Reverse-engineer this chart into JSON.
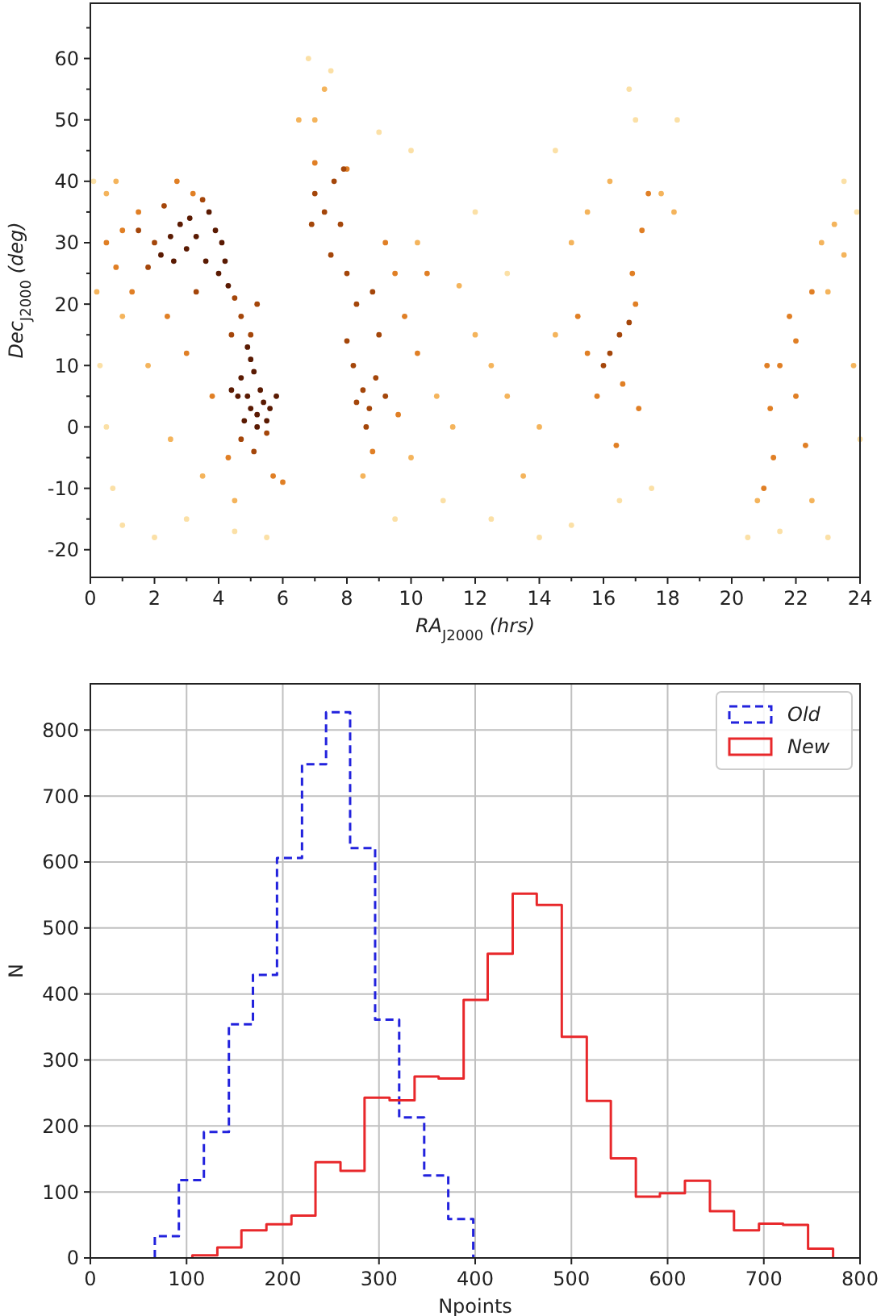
{
  "chart_data": [
    {
      "type": "scatter",
      "xlabel": "RA$_{J2000}$ (hrs)",
      "ylabel": "Dec$_{J2000}$ (deg)",
      "xlim": [
        0,
        24
      ],
      "ylim": [
        -24.5,
        69
      ],
      "xticks": [
        0,
        2,
        4,
        6,
        8,
        10,
        12,
        14,
        16,
        18,
        20,
        22,
        24,
        {
          "value": 1,
          "label": null
        },
        {
          "value": 3,
          "label": null
        },
        {
          "value": 5,
          "label": null
        },
        {
          "value": 7,
          "label": null
        },
        {
          "value": 9,
          "label": null
        },
        {
          "value": 11,
          "label": null
        },
        {
          "value": 13,
          "label": null
        },
        {
          "value": 15,
          "label": null
        },
        {
          "value": 17,
          "label": null
        },
        {
          "value": 19,
          "label": null
        },
        {
          "value": 21,
          "label": null
        },
        {
          "value": 23,
          "label": null
        }
      ],
      "yticks": [
        -20,
        -10,
        0,
        10,
        20,
        30,
        40,
        50,
        60,
        {
          "value": -15,
          "label": null
        },
        {
          "value": -5,
          "label": null
        },
        {
          "value": 5,
          "label": null
        },
        {
          "value": 15,
          "label": null
        },
        {
          "value": 25,
          "label": null
        },
        {
          "value": 35,
          "label": null
        },
        {
          "value": 45,
          "label": null
        },
        {
          "value": 55,
          "label": null
        },
        {
          "value": 65,
          "label": null
        }
      ],
      "grid": false,
      "legend": false,
      "marker": "circle",
      "series": [
        {
          "color": "#fbe0a6",
          "x": [
            0.3,
            0.5,
            0.7,
            1.0,
            2.0,
            3.0,
            4.5,
            5.5,
            6.8,
            7.5,
            9.0,
            10.0,
            12.0,
            12.5,
            14.0,
            15.0,
            16.5,
            17.0,
            16.8,
            18.3,
            11.0,
            13.0,
            9.5,
            20.5,
            21.5,
            23.5,
            23.9,
            23.0,
            24.0,
            0.1,
            17.5,
            14.5
          ],
          "values": [
            10,
            0,
            -10,
            -16,
            -18,
            -15,
            -17,
            -18,
            60,
            58,
            48,
            45,
            35,
            -15,
            -18,
            -16,
            -12,
            50,
            55,
            50,
            -12,
            25,
            -15,
            -18,
            -17,
            40,
            35,
            -18,
            -2,
            40,
            -10,
            45
          ]
        },
        {
          "color": "#f4b45c",
          "x": [
            0.2,
            0.5,
            1.0,
            0.8,
            1.8,
            2.5,
            3.5,
            4.5,
            6.5,
            7.0,
            7.3,
            10.0,
            8.5,
            10.8,
            11.3,
            12.5,
            13.0,
            14.0,
            14.5,
            15.0,
            15.5,
            16.2,
            17.8,
            18.2,
            13.5,
            20.8,
            22.8,
            23.2,
            23.5,
            23.0,
            23.8,
            22.5,
            11.5,
            10.2,
            12.0
          ],
          "values": [
            22,
            38,
            18,
            40,
            10,
            -2,
            -8,
            -12,
            50,
            50,
            55,
            -5,
            -8,
            5,
            0,
            10,
            5,
            0,
            15,
            30,
            35,
            40,
            38,
            35,
            -8,
            -12,
            30,
            33,
            28,
            22,
            10,
            -12,
            23,
            30,
            15
          ]
        },
        {
          "color": "#e07f25",
          "x": [
            0.5,
            1.0,
            0.8,
            1.5,
            2.7,
            3.2,
            1.3,
            2.4,
            3.0,
            3.8,
            4.3,
            5.7,
            6.0,
            7.0,
            8.0,
            9.2,
            9.5,
            9.8,
            10.2,
            9.6,
            8.8,
            10.5,
            15.2,
            15.5,
            15.8,
            16.6,
            17.0,
            17.2,
            17.4,
            16.9,
            17.1,
            16.4,
            21.0,
            21.2,
            21.5,
            21.8,
            22.0,
            22.3,
            21.3,
            22.5,
            22.0,
            21.1
          ],
          "values": [
            30,
            32,
            26,
            35,
            40,
            38,
            22,
            18,
            12,
            5,
            -5,
            -8,
            -9,
            43,
            42,
            30,
            25,
            18,
            12,
            2,
            -4,
            25,
            18,
            12,
            5,
            7,
            20,
            32,
            38,
            25,
            3,
            -3,
            -10,
            3,
            10,
            18,
            5,
            -3,
            -5,
            22,
            14,
            10
          ]
        },
        {
          "color": "#a4460a",
          "x": [
            1.5,
            2.0,
            2.3,
            1.8,
            3.3,
            3.5,
            4.5,
            4.7,
            5.0,
            5.2,
            4.4,
            4.7,
            5.1,
            5.5,
            7.0,
            7.3,
            7.6,
            7.8,
            7.5,
            8.0,
            8.3,
            8.0,
            8.2,
            8.5,
            8.7,
            8.3,
            8.9,
            9.2,
            8.6,
            9.0,
            8.8,
            7.9,
            16.2,
            16.5,
            16.0,
            16.8,
            6.9
          ],
          "values": [
            32,
            30,
            36,
            26,
            22,
            37,
            21,
            18,
            15,
            20,
            15,
            -2,
            -4,
            -1,
            38,
            35,
            40,
            33,
            28,
            25,
            20,
            14,
            10,
            6,
            3,
            4,
            8,
            5,
            0,
            15,
            22,
            42,
            12,
            15,
            10,
            17,
            33
          ]
        },
        {
          "color": "#5a1a02",
          "x": [
            2.5,
            2.8,
            3.0,
            3.3,
            2.2,
            3.6,
            3.9,
            4.1,
            4.2,
            3.7,
            2.6,
            3.1,
            4.0,
            4.3,
            4.7,
            4.9,
            5.0,
            5.2,
            5.4,
            5.6,
            5.3,
            5.1,
            4.8,
            5.5,
            5.0,
            4.6,
            5.8,
            5.2,
            4.9,
            4.4
          ],
          "values": [
            31,
            33,
            29,
            31,
            28,
            27,
            32,
            30,
            27,
            35,
            27,
            34,
            25,
            23,
            8,
            5,
            3,
            2,
            4,
            3,
            6,
            9,
            1,
            1,
            11,
            5,
            5,
            0,
            13,
            6
          ]
        }
      ]
    },
    {
      "type": "step",
      "xlabel": "Npoints",
      "ylabel": "N",
      "xlim": [
        0,
        800
      ],
      "ylim": [
        0,
        870
      ],
      "xticks": [
        0,
        100,
        200,
        300,
        400,
        500,
        600,
        700,
        800
      ],
      "yticks": [
        0,
        100,
        200,
        300,
        400,
        500,
        600,
        700,
        800
      ],
      "grid": true,
      "legend": "top right",
      "series": [
        {
          "name": "Old",
          "color": "#2222dd",
          "line_style": "dashed",
          "x": [
            67,
            67,
            92,
            118,
            144,
            169,
            194,
            220,
            245,
            270,
            296,
            321,
            347,
            372,
            398
          ],
          "values": [
            0,
            33,
            118,
            191,
            354,
            429,
            606,
            748,
            827,
            621,
            361,
            213,
            125,
            59,
            0
          ]
        },
        {
          "name": "New",
          "color": "#e8282b",
          "line_style": "solid",
          "x": [
            106,
            106,
            132,
            157,
            183,
            209,
            234,
            260,
            285,
            311,
            337,
            362,
            388,
            413,
            439,
            464,
            490,
            516,
            541,
            567,
            592,
            618,
            644,
            669,
            695,
            720,
            746,
            772
          ],
          "values": [
            0,
            4,
            16,
            42,
            51,
            64,
            145,
            132,
            243,
            239,
            275,
            272,
            391,
            461,
            552,
            535,
            335,
            238,
            151,
            93,
            98,
            117,
            71,
            42,
            52,
            50,
            14,
            0
          ]
        }
      ]
    }
  ]
}
